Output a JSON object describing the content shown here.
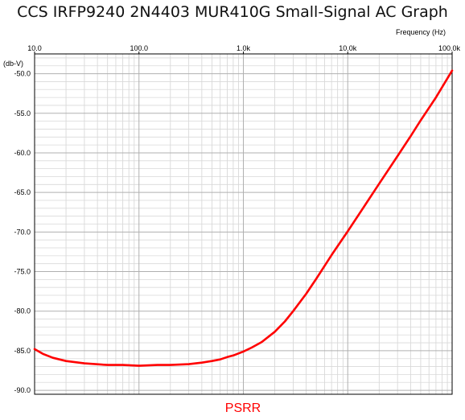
{
  "chart_data": {
    "type": "line",
    "title": "CCS IRFP9240 2N4403 MUR410G Small-Signal AC Graph",
    "xlabel": "Frequency   (Hz)",
    "ylabel": "(db-V)",
    "x_scale": "log",
    "xlim": [
      10,
      100000
    ],
    "ylim": [
      -90.5,
      -47.5
    ],
    "x_tick_labels": [
      "10.0",
      "100.0",
      "1.0k",
      "10.0k",
      "100.0k"
    ],
    "x_tick_values": [
      10,
      100,
      1000,
      10000,
      100000
    ],
    "y_tick_labels": [
      "-50.0",
      "-55.0",
      "-60.0",
      "-65.0",
      "-70.0",
      "-75.0",
      "-80.0",
      "-85.0",
      "-90.0"
    ],
    "y_tick_values": [
      -50,
      -55,
      -60,
      -65,
      -70,
      -75,
      -80,
      -85,
      -90
    ],
    "grid": true,
    "series": [
      {
        "name": "PSRR",
        "color": "#ff0000",
        "x": [
          10,
          12,
          15,
          20,
          30,
          50,
          70,
          100,
          150,
          200,
          300,
          400,
          500,
          600,
          700,
          800,
          1000,
          1200,
          1500,
          2000,
          2500,
          3000,
          4000,
          5000,
          7000,
          10000,
          15000,
          20000,
          30000,
          40000,
          50000,
          70000,
          100000
        ],
        "y": [
          -84.8,
          -85.4,
          -85.9,
          -86.3,
          -86.6,
          -86.8,
          -86.8,
          -86.9,
          -86.8,
          -86.8,
          -86.7,
          -86.5,
          -86.3,
          -86.1,
          -85.8,
          -85.6,
          -85.1,
          -84.6,
          -83.9,
          -82.6,
          -81.3,
          -80.0,
          -77.8,
          -75.9,
          -72.9,
          -69.9,
          -66.4,
          -63.9,
          -60.4,
          -57.9,
          -55.9,
          -53.0,
          -49.6
        ]
      }
    ],
    "legend_position": "bottom-center"
  }
}
